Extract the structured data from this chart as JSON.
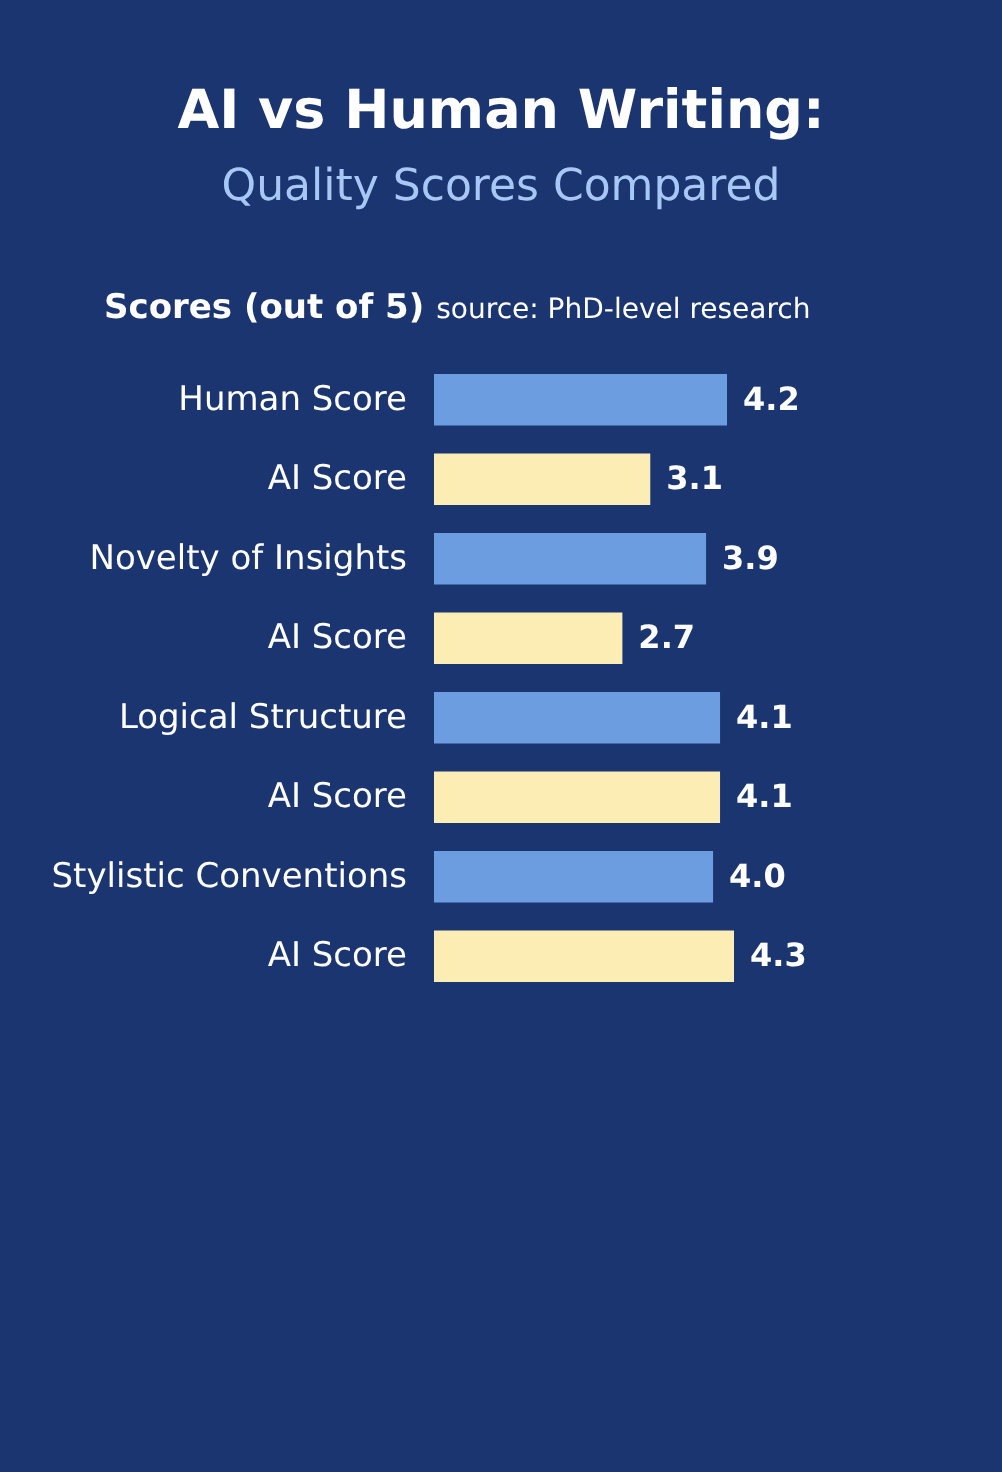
{
  "chart_data": {
    "type": "bar",
    "orientation": "horizontal",
    "title": "AI vs Human Writing:",
    "subtitle": "Quality Scores Compared",
    "annotations": [
      "Scores (out of 5)",
      "source: PhD-level research"
    ],
    "categories": [
      "Human Score",
      "AI Score",
      "Novelty of Insights",
      "AI Score",
      "Logical Structure",
      "AI Score",
      "Stylistic Conventions",
      "AI Score"
    ],
    "values": [
      4.2,
      3.1,
      3.9,
      2.7,
      4.1,
      4.1,
      4.0,
      4.3
    ],
    "colors": [
      "#6c9de0",
      "#fcedb4",
      "#6c9de0",
      "#fcedb4",
      "#6c9de0",
      "#fcedb4",
      "#6c9de0",
      "#fcedb4"
    ],
    "value_labels": [
      "4.2",
      "3.1",
      "3.9",
      "2.7",
      "4.1",
      "4.1",
      "4.0",
      "4.3"
    ]
  }
}
